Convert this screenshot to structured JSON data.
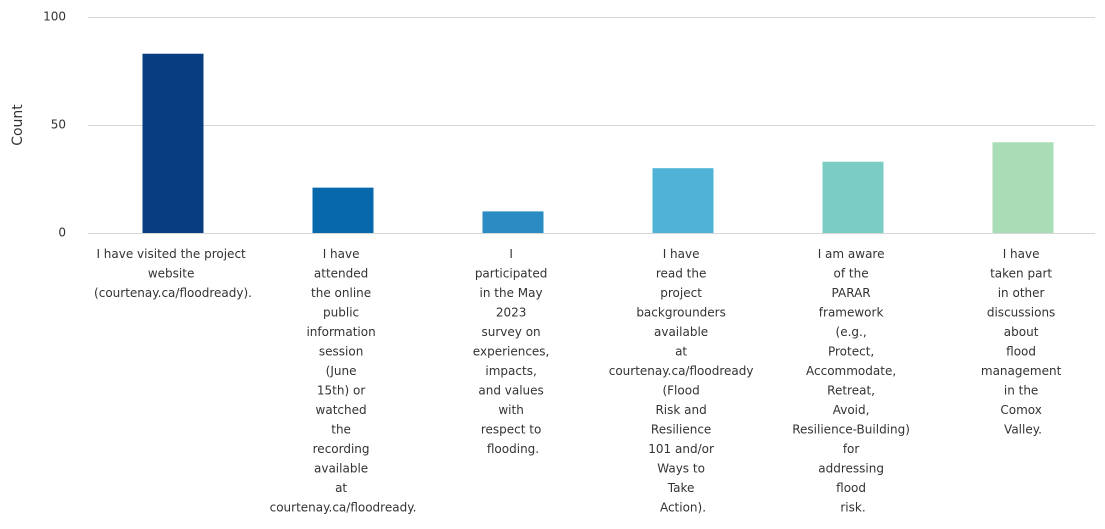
{
  "chart_data": {
    "type": "bar",
    "y_label": "Count",
    "categories": [
      "I have visited the project website (courtenay.ca/floodready).",
      "I have attended the online public information session (June 15th) or watched the recording available at courtenay.ca/floodready.",
      "I participated in the May 2023 survey on experiences, impacts, and values with respect to flooding.",
      "I have read the project backgrounders available at courtenay.ca/floodready (Flood Risk and Resilience 101 and/or Ways to Take Action).",
      "I am aware of the PARAR framework (e.g., Protect, Accommodate, Retreat, Avoid, Resilience-Building) for addressing flood risk.",
      "I have taken part in other discussions about flood management in the Comox Valley."
    ],
    "values": [
      83,
      21,
      10,
      30,
      33,
      42
    ],
    "colors": [
      "#083d7f",
      "#0868ac",
      "#2b8cc3",
      "#4eb3d6",
      "#7bccc4",
      "#a8ddb5"
    ],
    "ylim": [
      0,
      100
    ],
    "yticks": [
      0,
      50,
      100
    ],
    "grid": true
  }
}
